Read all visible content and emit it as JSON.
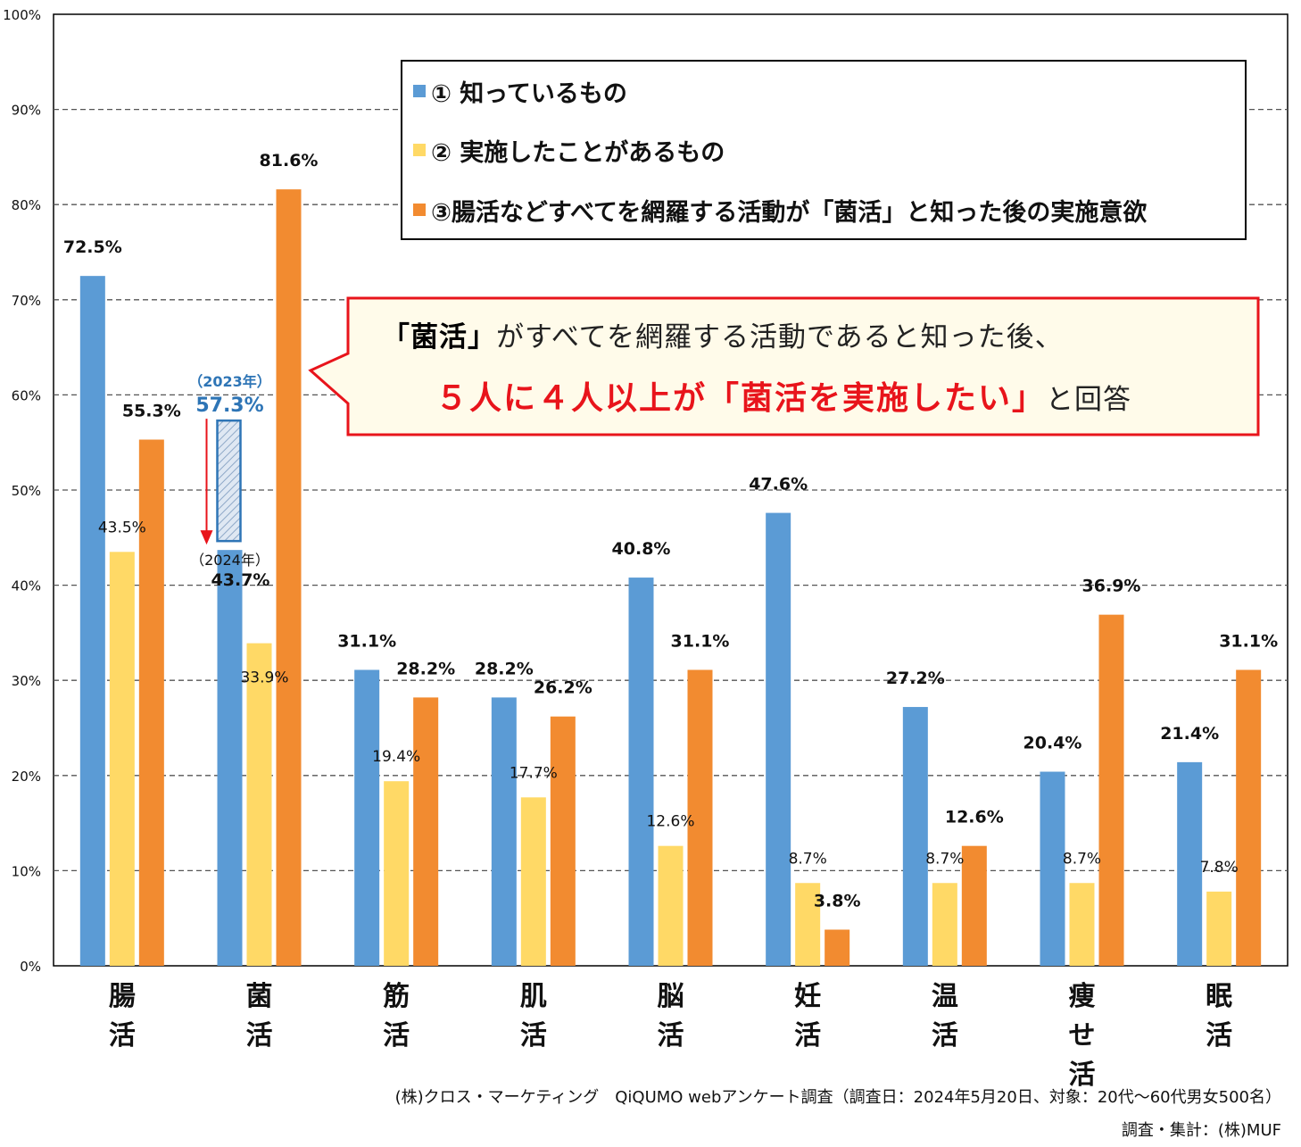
{
  "chart_data": {
    "type": "bar",
    "categories": [
      "腸活",
      "菌活",
      "筋活",
      "肌活",
      "脳活",
      "妊活",
      "温活",
      "痩せ活",
      "眠活"
    ],
    "category_labels": [
      [
        "腸",
        "活"
      ],
      [
        "菌",
        "活"
      ],
      [
        "筋",
        "活"
      ],
      [
        "肌",
        "活"
      ],
      [
        "脳",
        "活"
      ],
      [
        "妊",
        "活"
      ],
      [
        "温",
        "活"
      ],
      [
        "痩",
        "せ",
        "活"
      ],
      [
        "眠",
        "活"
      ]
    ],
    "series": [
      {
        "name": "① 知っているもの",
        "color": "#5b9bd5",
        "values": [
          72.5,
          43.7,
          31.1,
          28.2,
          40.8,
          47.6,
          27.2,
          20.4,
          21.4
        ],
        "labels": [
          "72.5%",
          "43.7%",
          "31.1%",
          "28.2%",
          "40.8%",
          "47.6%",
          "27.2%",
          "20.4%",
          "21.4%"
        ]
      },
      {
        "name": "② 実施したことがあるもの",
        "color": "#ffd966",
        "values": [
          43.5,
          33.9,
          19.4,
          17.7,
          12.6,
          8.7,
          8.7,
          8.7,
          7.8
        ],
        "labels": [
          "43.5%",
          "33.9%",
          "19.4%",
          "17.7%",
          "12.6%",
          "8.7%",
          "8.7%",
          "8.7%",
          "7.8%"
        ]
      },
      {
        "name": "③腸活などすべてを網羅する活動が「菌活」と知った後の実施意欲",
        "color": "#f28b30",
        "values": [
          55.3,
          81.6,
          28.2,
          26.2,
          31.1,
          3.8,
          12.6,
          36.9,
          31.1
        ],
        "labels": [
          "55.3%",
          "81.6%",
          "28.2%",
          "26.2%",
          "31.1%",
          "3.8%",
          "12.6%",
          "36.9%",
          "31.1%"
        ]
      }
    ],
    "ylim": [
      0,
      100
    ],
    "yticks": [
      0,
      10,
      20,
      30,
      40,
      50,
      60,
      70,
      80,
      90,
      100
    ],
    "ytick_labels": [
      "0%",
      "10%",
      "20%",
      "30%",
      "40%",
      "50%",
      "60%",
      "70%",
      "80%",
      "90%",
      "100%"
    ],
    "grid": true,
    "legend_position": "top-right",
    "annotation_2023": {
      "category": "菌活",
      "year_label": "（2023年）",
      "value": 57.3,
      "value_label": "57.3%"
    },
    "annotation_2024": {
      "year_label": "（2024年）"
    }
  },
  "callout": {
    "line1_strong": "「菌活」",
    "line1_rest": "がすべてを網羅する活動であると知った後、",
    "line2_emph": "５人に４人以上が「菌活を実施したい」",
    "line2_rest": "と回答"
  },
  "footer": {
    "source": "(株)クロス・マーケティング　QiQUMO webアンケート調査（調査日：2024年5月20日、対象：20代～60代男女500名）",
    "credit": "調査・集計：(株)MUF"
  },
  "colors": {
    "blue": "#5b9bd5",
    "yellow": "#ffd966",
    "orange": "#f28b30",
    "red": "#e8141b",
    "callout_bg": "#fffbea",
    "annotation_blue": "#2e75b6"
  }
}
